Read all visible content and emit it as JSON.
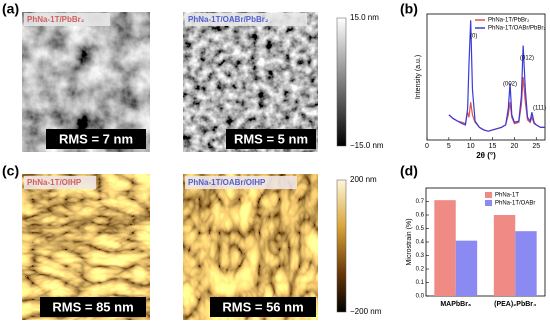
{
  "panels": {
    "a": {
      "label": "(a)",
      "images": [
        {
          "caption": "PhNa-1T/PbBr₂",
          "rms": "RMS = 7 nm"
        },
        {
          "caption": "PhNa-1T/OABr/PbBr₂",
          "rms": "RMS = 5 nm"
        }
      ],
      "colorbar": {
        "max": "15.0 nm",
        "min": "−15.0 nm"
      }
    },
    "c": {
      "label": "(c)",
      "images": [
        {
          "caption": "PhNa-1T/OIHP",
          "rms": "RMS = 85 nm"
        },
        {
          "caption": "PhNa-1T/OABr/OIHP",
          "rms": "RMS = 56 nm"
        }
      ],
      "colorbar": {
        "max": "200 nm",
        "min": "−200 nm"
      }
    }
  },
  "chart_data": [
    {
      "type": "line",
      "panel_label": "(b)",
      "xlabel": "2θ (°)",
      "ylabel": "Intensity (a.u.)",
      "x": [
        5,
        6,
        7,
        8,
        8.8,
        9.3,
        9.6,
        10,
        10.4,
        11,
        12,
        13,
        14,
        15,
        16,
        17,
        18,
        18.6,
        19,
        19.4,
        20,
        21,
        21.6,
        22,
        22.5,
        23,
        23.6,
        24,
        24.5,
        25,
        26,
        27
      ],
      "series": [
        {
          "name": "PhNa-1T/PbBr₂",
          "color": "#e05050",
          "values": [
            0.2,
            0.17,
            0.15,
            0.14,
            0.13,
            0.22,
            0.18,
            0.3,
            0.2,
            0.14,
            0.1,
            0.08,
            0.07,
            0.08,
            0.09,
            0.1,
            0.12,
            0.2,
            0.3,
            0.18,
            0.13,
            0.14,
            0.28,
            0.5,
            0.3,
            0.16,
            0.14,
            0.18,
            0.13,
            0.12,
            0.1,
            0.1
          ]
        },
        {
          "name": "PhNa-1T/OABr/PbBr₂",
          "color": "#3a3ad8",
          "values": [
            0.2,
            0.17,
            0.15,
            0.13,
            0.12,
            0.25,
            0.6,
            0.95,
            0.4,
            0.15,
            0.1,
            0.08,
            0.07,
            0.08,
            0.09,
            0.1,
            0.12,
            0.25,
            0.45,
            0.2,
            0.14,
            0.15,
            0.35,
            0.75,
            0.4,
            0.18,
            0.15,
            0.22,
            0.14,
            0.12,
            0.1,
            0.1
          ]
        }
      ],
      "xlim": [
        0,
        27
      ],
      "xticks": [
        0,
        5,
        10,
        15,
        20,
        25
      ],
      "ylim": [
        0,
        1
      ],
      "annotations": [
        "(0)",
        "(002)",
        "(012)",
        "(111)"
      ],
      "legend": "upper right"
    },
    {
      "type": "bar",
      "panel_label": "(d)",
      "ylabel": "Microstrain (%)",
      "categories": [
        "MAPbBr₃",
        "(PEA)₂PbBr₄"
      ],
      "series": [
        {
          "name": "PhNa-1T",
          "color": "#f08a84",
          "values": [
            0.71,
            0.6
          ]
        },
        {
          "name": "PhNa-1T/OABr",
          "color": "#8a8af2",
          "values": [
            0.41,
            0.48
          ]
        }
      ],
      "ylim": [
        0,
        0.8
      ],
      "yticks": [
        {
          "value": 0,
          "label": "0.0"
        },
        0.1,
        0.2,
        0.3,
        0.4,
        0.5,
        0.6,
        0.7
      ],
      "legend": "upper right"
    }
  ]
}
